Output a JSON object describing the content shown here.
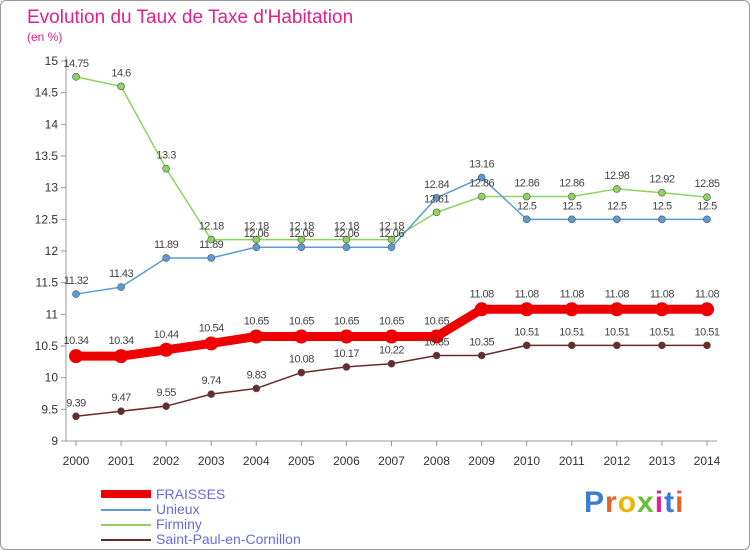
{
  "title": "Evolution du Taux de Taxe d'Habitation",
  "unit_label": "(en %)",
  "logo_text": "Proxiti",
  "chart_data": {
    "type": "line",
    "title": "Evolution du Taux de Taxe d'Habitation",
    "ylabel": "(en %)",
    "xlabel": "",
    "grid": false,
    "ylim": [
      9,
      15
    ],
    "yticks": [
      "9",
      "9.5",
      "10",
      "10.5",
      "11",
      "11.5",
      "12",
      "12.5",
      "13",
      "13.5",
      "14",
      "14.5",
      "15"
    ],
    "categories": [
      "2000",
      "2001",
      "2002",
      "2003",
      "2004",
      "2005",
      "2006",
      "2007",
      "2008",
      "2009",
      "2010",
      "2011",
      "2012",
      "2013",
      "2014"
    ],
    "series": [
      {
        "name": "FRAISSES",
        "color": "#ee0000",
        "values": [
          10.34,
          10.34,
          10.44,
          10.54,
          10.65,
          10.65,
          10.65,
          10.65,
          10.65,
          11.08,
          11.08,
          11.08,
          11.08,
          11.08,
          11.08
        ],
        "labels": [
          "10.34",
          "10.34",
          "10.44",
          "10.54",
          "10.65",
          "10.65",
          "10.65",
          "10.65",
          "10.65",
          "11.08",
          "11.08",
          "11.08",
          "11.08",
          "11.08",
          "11.08"
        ]
      },
      {
        "name": "Unieux",
        "color": "#5b9bd5",
        "values": [
          11.32,
          11.43,
          11.89,
          11.89,
          12.06,
          12.06,
          12.06,
          12.06,
          12.84,
          13.16,
          12.5,
          12.5,
          12.5,
          12.5,
          12.5
        ],
        "labels": [
          "11.32",
          "11.43",
          "11.89",
          "11.89",
          "12.06",
          "12.06",
          "12.06",
          "12.06",
          "12.84",
          "13.16",
          "12.5",
          "12.5",
          "12.5",
          "12.5",
          "12.5"
        ]
      },
      {
        "name": "Firminy",
        "color": "#8dd35f",
        "values": [
          14.75,
          14.6,
          13.3,
          12.18,
          12.18,
          12.18,
          12.18,
          12.18,
          12.61,
          12.86,
          12.86,
          12.86,
          12.98,
          12.92,
          12.85
        ],
        "labels": [
          "14.75",
          "14.6",
          "13.3",
          "12.18",
          "12.18",
          "12.18",
          "12.18",
          "12.18",
          "12.61",
          "12.86",
          "12.86",
          "12.86",
          "12.98",
          "12.92",
          "12.85"
        ]
      },
      {
        "name": "Saint-Paul-en-Cornillon",
        "color": "#6b2a2a",
        "values": [
          9.39,
          9.47,
          9.55,
          9.74,
          9.83,
          10.08,
          10.17,
          10.22,
          10.35,
          10.35,
          10.51,
          10.51,
          10.51,
          10.51,
          10.51
        ],
        "labels": [
          "9.39",
          "9.47",
          "9.55",
          "9.74",
          "9.83",
          "10.08",
          "10.17",
          "10.22",
          "10.35",
          "10.35",
          "10.51",
          "10.51",
          "10.51",
          "10.51",
          "10.51"
        ]
      }
    ]
  }
}
